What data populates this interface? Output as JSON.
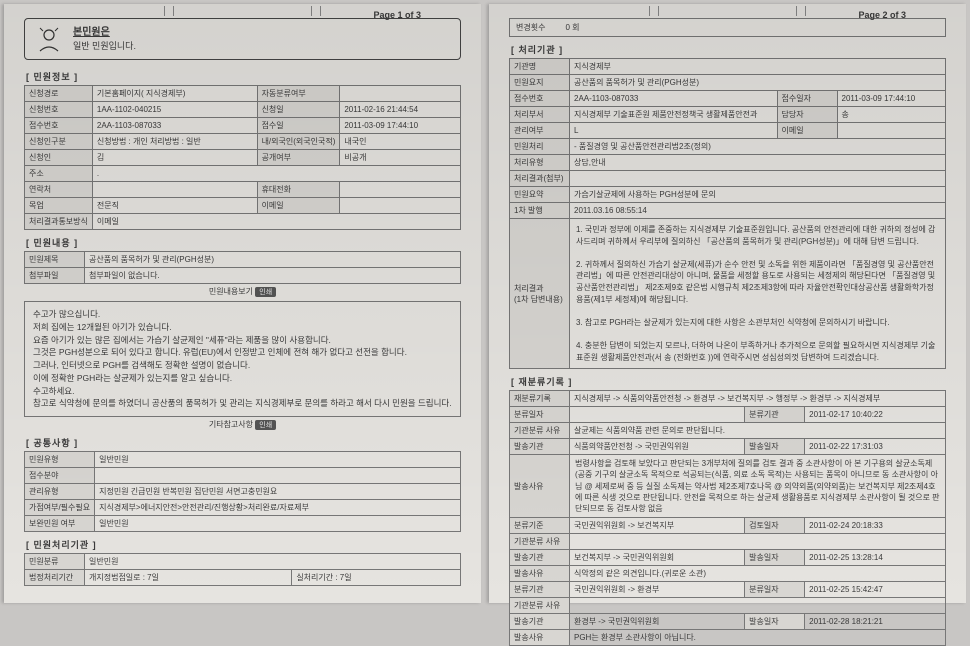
{
  "page1": {
    "pageNum": "Page 1 of 3",
    "titleBold": "본민원은",
    "titleLine2": "일반 민원입니다.",
    "sect1": "[ 민원정보 ]",
    "r1": {
      "a": "신청경로",
      "b": "기본홈페이지( 지식경제부)",
      "c": "자동분류여부",
      "d": ""
    },
    "r2": {
      "a": "신청번호",
      "b": "1AA-1102-040215",
      "c": "신청일",
      "d": "2011-02-16 21:44:54"
    },
    "r3": {
      "a": "접수번호",
      "b": "2AA-1103-087033",
      "c": "접수일",
      "d": "2011-03-09 17:44:10"
    },
    "r4": {
      "a": "신청인구분",
      "b": "신청방법 : 개인  처리방법 : 일반",
      "c": "내/외국인(외국인국적)",
      "d": "내국인"
    },
    "r5": {
      "a": "신청인",
      "b": "김",
      "c": "공개여부",
      "d": "비공개"
    },
    "r6": {
      "a": "주소",
      "b": "."
    },
    "r7": {
      "a": "연락처",
      "b": "",
      "c": "휴대전화",
      "d": ""
    },
    "r8": {
      "a": "목업",
      "b": "전문직",
      "c": "이메일",
      "d": ""
    },
    "r9": {
      "a": "처리결과통보방식",
      "b": "이메일"
    },
    "sect2": "[ 민원내용 ]",
    "rq1": {
      "a": "민원제목",
      "b": "공산품의 품목허가 및 관리(PGH성분)"
    },
    "rq2": {
      "a": "첨부파일",
      "b": "첨부파일이 없습니다."
    },
    "centerTag": "민원내용보기",
    "pill": "인쇄",
    "body": [
      "수고가 많으십니다.",
      "저희 집에는 12개월된 아기가 있습니다.",
      "요즘 아기가 있는 많은 집에서는 가습기 살균제인 \"세퓨\"라는 제품을 많이 사용합니다.",
      "그것은 PGH성분으로 되어 있다고 합니다. 유럽(EU)에서 인정받고 인체에 전혀 해가 없다고 선전을 합니다.",
      "그러나, 인터넷으로 PGH를 검색해도 정확한 설명이 없습니다.",
      "이에 정확한 PGH라는 살균제가 있는지를 알고 싶습니다.",
      "수고하세요.",
      "참고로 식약청에 문의를 하였더니 공산품의 품목허가 및 관리는 지식경제부로 문의를 하라고 해서 다시 민원을 드립니다."
    ],
    "centerTag2": "기타참고사항",
    "sect3": "[ 공통사항 ]",
    "c1": {
      "a": "민원유형",
      "b": "일반민원"
    },
    "c2": {
      "a": "접수분야",
      "b": ""
    },
    "c3": {
      "a": "관리유형",
      "b": "지정민원    긴급민원    반복민원    집단민원    서면고충민원요"
    },
    "c4": {
      "a": "가점여부/필수필요",
      "b": "지식경제부>에너지안전>안전관리/진행상황>처리완료/자료제부"
    },
    "c5": {
      "a": "보완민원 여부",
      "b": "일반민원"
    },
    "sect4": "[ 민원처리기관 ]",
    "d1": {
      "a": "민원분류",
      "b": "일반민원"
    },
    "d2": {
      "a": "법정처리기간",
      "b": "개지정법접일로 : 7일",
      "c": "실처리기간 : 7일"
    }
  },
  "page2": {
    "pageNum": "Page 2 of 3",
    "hdr": {
      "a": "변경횟수",
      "b": "0 회"
    },
    "sect1": "[ 처리기관 ]",
    "r1": {
      "a": "기관명",
      "b": "지식경제부"
    },
    "r2": {
      "a": "민원요지",
      "b": "공산품의 품목허가 및 관리(PGH성분)"
    },
    "r3": {
      "a": "접수번호",
      "b": "2AA-1103-087033",
      "c": "접수일자",
      "d": "2011-03-09 17:44:10"
    },
    "r4": {
      "a": "처리부서",
      "b": "지식경제부 기술표준원 제품안전정책국 생활제품안전과",
      "c": "담당자",
      "d": "송"
    },
    "r5": {
      "a": "관리여부",
      "b": "L",
      "c": "이메일",
      "d": ""
    },
    "r6": {
      "a": "민원처리",
      "b": "- 품질경영 및 공산품안전관리법2조(정의)"
    },
    "r7": {
      "a": "처리유형",
      "b": "상담,안내"
    },
    "r8": {
      "a": "처리결과(첨부)",
      "b": ""
    },
    "r9": {
      "a": "민원요약",
      "b": "가습기살균제에 사용하는 PGH성분에 문의"
    },
    "r10": {
      "a": "1차 발행",
      "b": "2011.03.16 08:55:14"
    },
    "resLabel": "처리결과\n(1차 답변내용)",
    "resBody": [
      "1. 국민과 정부에 이제를 존중하는 지식경제부 기술표준원입니다. 공산품의 안전관리에 대한 귀하의 정성에 감사드리며 귀하께서 우리부에 질의하신 「공산품의 품목허가 및 관리(PGH성분)」에 대해 답변 드립니다.",
      "2. 귀하께서 질의하신 가습기 살균제(세퓨)가 순수 안전 및 소독을 위한 제품이라면 「품질경영 및 공산품안전관리법」에 따른 안전관리대상이 아니며, 물품을 세정할 용도로 사용되는 세정제의 해당된다면 「품질경영 및 공산품안전관리법」 제2조제9호 같은법 시행규칙 제2조제3항에 따라 자율안전확인대상공산품 생활화학가정용품(제1부 세정제)에 해당됩니다.",
      "3. 참고로 PGH라는 살균제가 있는지에 대한 사항은 소관부처인 식약청에 문의하시기 바랍니다.",
      "4. 충분한 답변이 되었는지 모르나, 더하여 나온이 부족하거나 추가적으로 문의할 필요하시면 지식경제부 기술표준원 생활제품안전과(서 송        (전화번호         ))에 연락주시면 성심성의껏 답변하여 드리겠습니다."
    ],
    "sect2": "[ 재분류기록 ]",
    "t1": {
      "a": "재분류기록",
      "b": "지식경제부 -> 식품의약품안전청 -> 환경부 -> 보건복지부 -> 행정부 -> 환경부 -> 지식경제부"
    },
    "t2": {
      "a": "분류일자",
      "b": "",
      "c": "분류기관",
      "d": "2011-02-17 10:40:22"
    },
    "t3": {
      "a": "기관분류 사유",
      "b": "살균제는 식품의약품 관련 문의로 판단됩니다."
    },
    "t4": {
      "a": "발송기관",
      "b": "식품의약품안전청 -> 국민권익위원",
      "c": "발송일자",
      "d": "2011-02-22 17:31:03"
    },
    "t5": {
      "a": "발송사유",
      "b": "법령사항을 검토해 보았다고 판단되는 3개부처에 질의를 검토 결과 중 소관사항이 아 본 기구용의 살균소독제(공중 기구의 살균소독 목적으로 석공되는(식품, 의료 소독 목적)는 사용되는 품목이 아니므로 동 소관사항이 아님 @ 세제로써 중 등 실질 소독제는 약사법 제2조제7호나목 @ 의약외품(의약외품)는 보건복지부 제2조제4호에 따른 식생 것으로 판단됩니다. 안전을 목적으로 하는 살균제 생활용품로 지식경제부 소관사항이 될 것으로 판단되므로 동 검토사항 없음"
    },
    "t6": {
      "a": "분류기준",
      "b": "국민권익위원회 -> 보건복지부",
      "c": "검토일자",
      "d": "2011-02-24 20:18:33"
    },
    "t7": {
      "a": "기관분류 사유",
      "b": ""
    },
    "t8": {
      "a": "발송기관",
      "b": "보건복지부 -> 국민권익위원회",
      "c": "발송일자",
      "d": "2011-02-25 13:28:14"
    },
    "t9": {
      "a": "발송사유",
      "b": "식악정의 같은 의견입니다.(귀로운 소관)"
    },
    "t10": {
      "a": "분류기관",
      "b": "국민권익위원회 -> 환경부",
      "c": "분류일자",
      "d": "2011-02-25 15:42:47"
    },
    "t11": {
      "a": "기관분류 사유",
      "b": ""
    },
    "t12": {
      "a": "발송기관",
      "b": "환경부 -> 국민권익위원회",
      "c": "발송일자",
      "d": "2011-02-28 18:21:21"
    },
    "t13": {
      "a": "발송사유",
      "b": "PGH는 환경부 소관사항이 아닙니다."
    }
  }
}
